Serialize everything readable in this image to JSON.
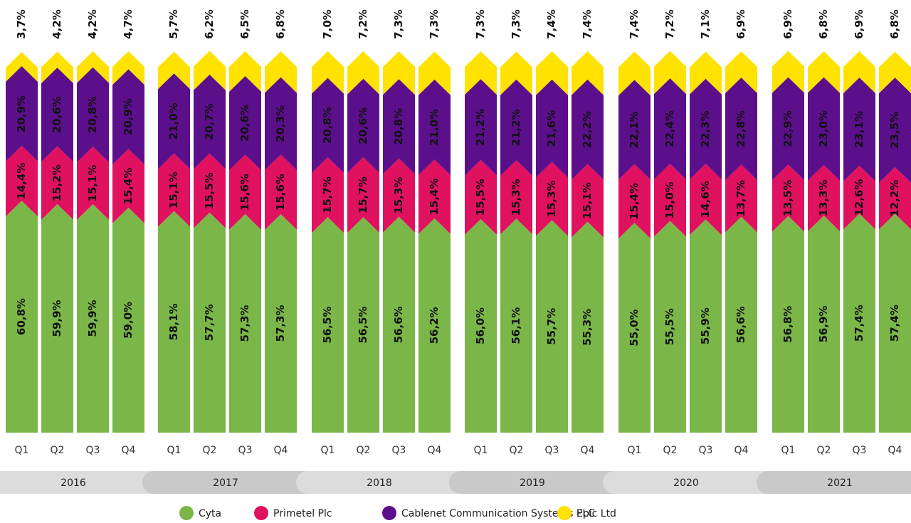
{
  "chart_data": {
    "type": "stacked_bar",
    "categories": [
      "Q1",
      "Q2",
      "Q3",
      "Q4",
      "Q1",
      "Q2",
      "Q3",
      "Q4",
      "Q1",
      "Q2",
      "Q3",
      "Q4",
      "Q1",
      "Q2",
      "Q3",
      "Q4",
      "Q1",
      "Q2",
      "Q3",
      "Q4",
      "Q1",
      "Q2",
      "Q3",
      "Q4"
    ],
    "groups": [
      "2016",
      "2017",
      "2018",
      "2019",
      "2020",
      "2021"
    ],
    "series": [
      {
        "name": "Cyta",
        "color": "#7ab648",
        "values": [
          60.8,
          59.9,
          59.9,
          59.0,
          58.1,
          57.7,
          57.3,
          57.3,
          56.5,
          56.5,
          56.6,
          56.2,
          56.0,
          56.1,
          55.7,
          55.3,
          55.0,
          55.5,
          55.9,
          56.6,
          56.8,
          56.9,
          57.4,
          57.4
        ],
        "value_labels": [
          "60,8%",
          "59,9%",
          "59,9%",
          "59,0%",
          "58,1%",
          "57,7%",
          "57,3%",
          "57,3%",
          "56,5%",
          "56,5%",
          "56,6%",
          "56,2%",
          "56,0%",
          "56,1%",
          "55,7%",
          "55,3%",
          "55,0%",
          "55,5%",
          "55,9%",
          "56,6%",
          "56,8%",
          "56,9%",
          "57,4%",
          "57,4%"
        ]
      },
      {
        "name": "Primetel Plc",
        "color": "#e0115f",
        "values": [
          14.4,
          15.2,
          15.1,
          15.4,
          15.1,
          15.5,
          15.6,
          15.6,
          15.7,
          15.7,
          15.3,
          15.4,
          15.5,
          15.3,
          15.3,
          15.1,
          15.4,
          15.0,
          14.6,
          13.7,
          13.5,
          13.3,
          12.6,
          12.2
        ],
        "value_labels": [
          "14,4%",
          "15,2%",
          "15,1%",
          "15,4%",
          "15,1%",
          "15,5%",
          "15,6%",
          "15,6%",
          "15,7%",
          "15,7%",
          "15,3%",
          "15,4%",
          "15,5%",
          "15,3%",
          "15,3%",
          "15,1%",
          "15,4%",
          "15,0%",
          "14,6%",
          "13,7%",
          "13,5%",
          "13,3%",
          "12,6%",
          "12,2%"
        ]
      },
      {
        "name": "Cablenet Communication Systems PLC",
        "color": "#5c0f8b",
        "values": [
          20.9,
          20.6,
          20.8,
          20.9,
          21.0,
          20.7,
          20.6,
          20.3,
          20.8,
          20.6,
          20.8,
          21.0,
          21.2,
          21.2,
          21.6,
          22.2,
          22.1,
          22.4,
          22.3,
          22.8,
          22.9,
          23.0,
          23.1,
          23.5
        ],
        "value_labels": [
          "20,9%",
          "20,6%",
          "20,8%",
          "20,9%",
          "21,0%",
          "20,7%",
          "20,6%",
          "20,3%",
          "20,8%",
          "20,6%",
          "20,8%",
          "21,0%",
          "21,2%",
          "21,2%",
          "21,6%",
          "22,2%",
          "22,1%",
          "22,4%",
          "22,3%",
          "22,8%",
          "22,9%",
          "23,0%",
          "23,1%",
          "23,5%"
        ]
      },
      {
        "name": "Epic Ltd",
        "color": "#ffe200",
        "values": [
          3.7,
          4.2,
          4.2,
          4.7,
          5.7,
          6.2,
          6.5,
          6.8,
          7.0,
          7.2,
          7.3,
          7.3,
          7.3,
          7.3,
          7.4,
          7.4,
          7.4,
          7.2,
          7.1,
          6.9,
          6.9,
          6.8,
          6.9,
          6.8
        ],
        "value_labels": [
          "3,7%",
          "4,2%",
          "4,2%",
          "4,7%",
          "5,7%",
          "6,2%",
          "6,5%",
          "6,8%",
          "7,0%",
          "7,2%",
          "7,3%",
          "7,3%",
          "7,3%",
          "7,3%",
          "7,4%",
          "7,4%",
          "7,4%",
          "7,2%",
          "7,1%",
          "6,9%",
          "6,9%",
          "6,8%",
          "6,9%",
          "6,8%"
        ]
      }
    ]
  }
}
